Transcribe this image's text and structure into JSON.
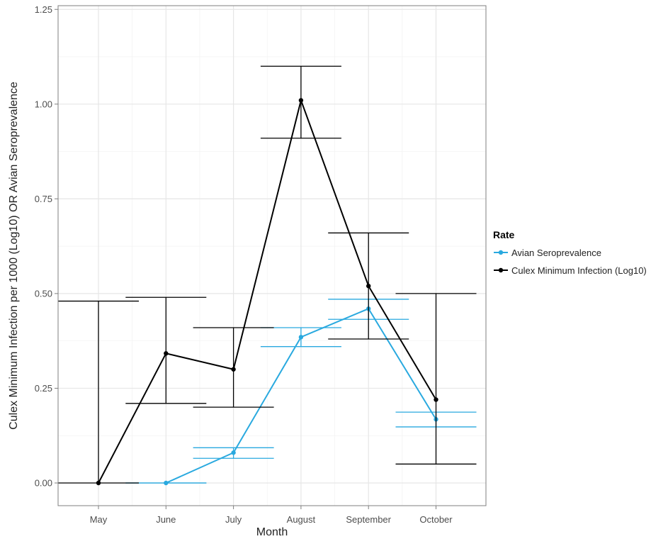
{
  "chart_data": {
    "type": "line",
    "title": "",
    "xlabel": "Month",
    "ylabel": "Culex Minimum Infection per 1000 (Log10) OR Avian Seroprevalence",
    "categories": [
      "May",
      "June",
      "July",
      "August",
      "September",
      "October"
    ],
    "ylim": [
      -0.07,
      1.25
    ],
    "yticks": [
      0.0,
      0.25,
      0.5,
      0.75,
      1.0,
      1.25
    ],
    "ytick_labels": [
      "0.00",
      "0.25",
      "0.50",
      "0.75",
      "1.00",
      "1.25"
    ],
    "grid": true,
    "legend": {
      "title": "Rate",
      "position": "right"
    },
    "series": [
      {
        "name": "Avian Seroprevalence",
        "color": "#29a9df",
        "values": [
          null,
          0.0,
          0.08,
          0.385,
          0.46,
          0.168
        ],
        "err_low": [
          null,
          0.0,
          0.065,
          0.36,
          0.432,
          0.148
        ],
        "err_high": [
          null,
          0.0,
          0.093,
          0.41,
          0.485,
          0.187
        ]
      },
      {
        "name": "Culex Minimum Infection (Log10)",
        "color": "#000000",
        "values": [
          0.0,
          0.342,
          0.3,
          1.01,
          0.52,
          0.22
        ],
        "err_low": [
          0.0,
          0.21,
          0.2,
          0.91,
          0.38,
          0.05
        ],
        "err_high": [
          0.48,
          0.49,
          0.41,
          1.1,
          0.66,
          0.5
        ]
      }
    ]
  }
}
